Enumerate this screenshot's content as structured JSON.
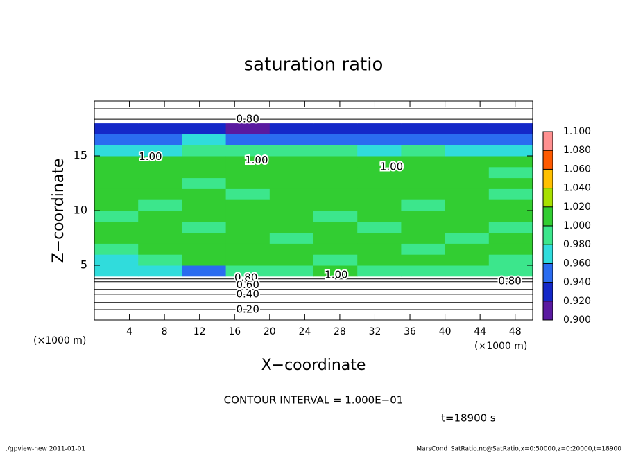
{
  "chart_data": {
    "type": "heatmap",
    "title": "saturation ratio",
    "xlabel": "X−coordinate",
    "ylabel": "Z−coordinate",
    "x_unit": "(×1000 m)",
    "z_unit": "(×1000 m)",
    "xlim": [
      0,
      50
    ],
    "ylim": [
      0,
      20
    ],
    "xticks": [
      4,
      8,
      12,
      16,
      20,
      24,
      28,
      32,
      36,
      40,
      44,
      48
    ],
    "yticks": [
      5,
      10,
      15
    ],
    "x_edges": [
      0,
      5,
      10,
      15,
      20,
      25,
      30,
      35,
      40,
      45,
      50
    ],
    "z_edges": [
      0,
      1,
      2,
      3,
      4,
      5,
      6,
      7,
      8,
      9,
      10,
      11,
      12,
      13,
      14,
      15,
      16,
      17,
      18,
      19,
      20
    ],
    "values": [
      [
        0.15,
        0.15,
        0.15,
        0.15,
        0.15,
        0.15,
        0.15,
        0.15,
        0.15,
        0.15
      ],
      [
        0.25,
        0.25,
        0.25,
        0.25,
        0.25,
        0.25,
        0.25,
        0.25,
        0.25,
        0.25
      ],
      [
        0.45,
        0.45,
        0.45,
        0.45,
        0.45,
        0.45,
        0.45,
        0.45,
        0.45,
        0.45
      ],
      [
        0.75,
        0.75,
        0.75,
        0.7,
        0.75,
        0.75,
        0.75,
        0.75,
        0.75,
        0.75
      ],
      [
        0.96,
        0.97,
        0.94,
        0.99,
        0.99,
        1.0,
        0.99,
        0.98,
        0.99,
        0.98
      ],
      [
        0.97,
        0.99,
        1.0,
        1.0,
        1.0,
        0.99,
        1.0,
        1.0,
        1.0,
        0.99
      ],
      [
        0.99,
        1.0,
        1.0,
        1.0,
        1.0,
        1.0,
        1.0,
        0.99,
        1.0,
        1.0
      ],
      [
        1.0,
        1.0,
        1.0,
        1.0,
        0.99,
        1.0,
        1.0,
        1.0,
        0.99,
        1.0
      ],
      [
        1.0,
        1.0,
        0.99,
        1.0,
        1.0,
        1.0,
        0.99,
        1.0,
        1.0,
        0.99
      ],
      [
        0.99,
        1.0,
        1.0,
        1.0,
        1.0,
        0.99,
        1.0,
        1.0,
        1.0,
        1.0
      ],
      [
        1.0,
        0.99,
        1.0,
        1.0,
        1.0,
        1.0,
        1.0,
        0.99,
        1.0,
        1.0
      ],
      [
        1.0,
        1.0,
        1.0,
        0.99,
        1.0,
        1.0,
        1.0,
        1.0,
        1.0,
        0.99
      ],
      [
        1.0,
        1.0,
        0.99,
        1.0,
        1.0,
        1.0,
        1.0,
        1.0,
        1.0,
        1.0
      ],
      [
        1.0,
        1.0,
        1.0,
        1.0,
        1.0,
        1.0,
        1.0,
        1.0,
        1.0,
        0.98
      ],
      [
        1.0,
        1.0,
        1.0,
        1.0,
        1.0,
        1.0,
        1.0,
        1.0,
        1.0,
        1.0
      ],
      [
        0.97,
        0.97,
        0.98,
        0.99,
        0.98,
        0.98,
        0.97,
        0.98,
        0.97,
        0.96
      ],
      [
        0.95,
        0.95,
        0.96,
        0.95,
        0.95,
        0.95,
        0.95,
        0.95,
        0.95,
        0.95
      ],
      [
        0.93,
        0.93,
        0.92,
        0.91,
        0.93,
        0.93,
        0.93,
        0.92,
        0.93,
        0.93
      ],
      [
        0.85,
        0.85,
        0.85,
        0.85,
        0.85,
        0.85,
        0.85,
        0.85,
        0.85,
        0.85
      ],
      [
        0.8,
        0.8,
        0.8,
        0.8,
        0.8,
        0.8,
        0.8,
        0.8,
        0.8,
        0.8
      ]
    ],
    "colorbar_ticks": [
      {
        "value": 0.9,
        "label": "0.900"
      },
      {
        "value": 0.92,
        "label": "0.920"
      },
      {
        "value": 0.94,
        "label": "0.940"
      },
      {
        "value": 0.96,
        "label": "0.960"
      },
      {
        "value": 0.98,
        "label": "0.980"
      },
      {
        "value": 1.0,
        "label": "1.000"
      },
      {
        "value": 1.02,
        "label": "1.020"
      },
      {
        "value": 1.04,
        "label": "1.040"
      },
      {
        "value": 1.06,
        "label": "1.060"
      },
      {
        "value": 1.08,
        "label": "1.080"
      },
      {
        "value": 1.1,
        "label": "1.100"
      }
    ],
    "colorbar_colors": [
      "#5a1aa0",
      "#1428c8",
      "#2a6cf0",
      "#30dcdc",
      "#3ce68c",
      "#32cd32",
      "#a8e000",
      "#ffc000",
      "#ff5a00",
      "#ff9090"
    ],
    "contour_labels": [
      {
        "label": "0.80",
        "x": 17.5,
        "z": 18.35
      },
      {
        "label": "1.00",
        "x": 6.4,
        "z": 14.9
      },
      {
        "label": "1.00",
        "x": 18.5,
        "z": 14.6
      },
      {
        "label": "1.00",
        "x": 33.9,
        "z": 14.0
      },
      {
        "label": "1.00",
        "x": 27.6,
        "z": 4.1
      },
      {
        "label": "0.80",
        "x": 47.4,
        "z": 3.55
      },
      {
        "label": "0.80",
        "x": 17.3,
        "z": 3.85
      },
      {
        "label": "0.60",
        "x": 17.5,
        "z": 3.2
      },
      {
        "label": "0.40",
        "x": 17.5,
        "z": 2.35
      },
      {
        "label": "0.20",
        "x": 17.5,
        "z": 0.95
      }
    ],
    "contour_interval": "CONTOUR INTERVAL = 1.000E−01",
    "time_label": "t=18900 s",
    "footer_left": "./gpview-new   2011-01-01",
    "footer_right": "MarsCond_SatRatio.nc@SatRatio,x=0:50000,z=0:20000,t=18900"
  }
}
